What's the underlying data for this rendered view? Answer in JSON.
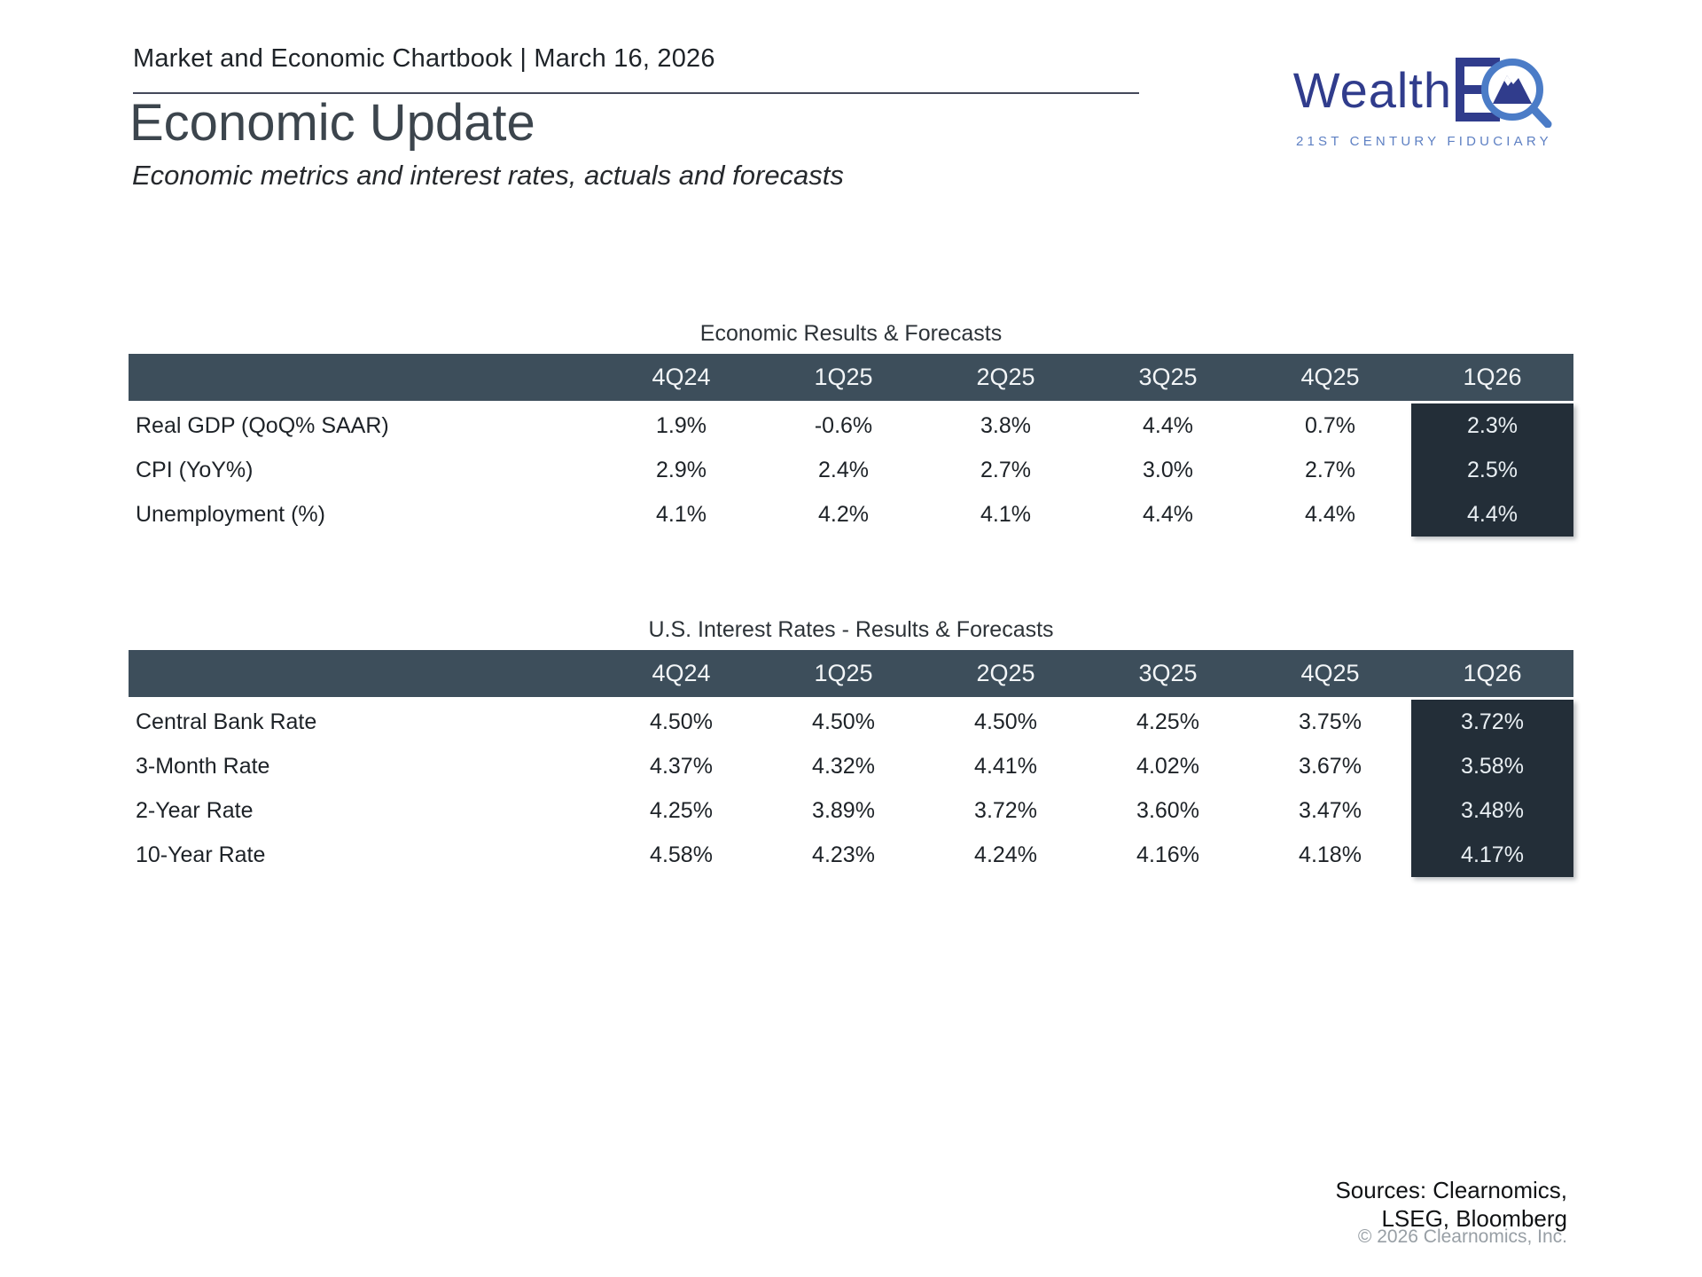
{
  "page": {
    "kicker": "Market and Economic Chartbook | March 16, 2026",
    "title": "Economic Update",
    "subtitle": "Economic metrics and interest rates, actuals and forecasts"
  },
  "logo": {
    "brand_main": "Wealth",
    "brand_suffix": "EQ",
    "tagline": "21ST CENTURY FIDUCIARY",
    "navy": "#303c8c",
    "blue": "#4b7cc7"
  },
  "colors": {
    "header_bar": "#3d4e5b",
    "forecast_column": "#232e38",
    "header_text": "#f2f5f7",
    "body_text": "#1d2227"
  },
  "tables": [
    {
      "title": "Economic Results & Forecasts",
      "columns": [
        "4Q24",
        "1Q25",
        "2Q25",
        "3Q25",
        "4Q25",
        "1Q26"
      ],
      "forecast_column_index": 5,
      "rows": [
        {
          "label": "Real GDP (QoQ% SAAR)",
          "values": [
            "1.9%",
            "-0.6%",
            "3.8%",
            "4.4%",
            "0.7%",
            "2.3%"
          ]
        },
        {
          "label": "CPI (YoY%)",
          "values": [
            "2.9%",
            "2.4%",
            "2.7%",
            "3.0%",
            "2.7%",
            "2.5%"
          ]
        },
        {
          "label": "Unemployment (%)",
          "values": [
            "4.1%",
            "4.2%",
            "4.1%",
            "4.4%",
            "4.4%",
            "4.4%"
          ]
        }
      ]
    },
    {
      "title": "U.S. Interest Rates - Results & Forecasts",
      "columns": [
        "4Q24",
        "1Q25",
        "2Q25",
        "3Q25",
        "4Q25",
        "1Q26"
      ],
      "forecast_column_index": 5,
      "rows": [
        {
          "label": "Central Bank Rate",
          "values": [
            "4.50%",
            "4.50%",
            "4.50%",
            "4.25%",
            "3.75%",
            "3.72%"
          ]
        },
        {
          "label": "3-Month Rate",
          "values": [
            "4.37%",
            "4.32%",
            "4.41%",
            "4.02%",
            "3.67%",
            "3.58%"
          ]
        },
        {
          "label": "2-Year Rate",
          "values": [
            "4.25%",
            "3.89%",
            "3.72%",
            "3.60%",
            "3.47%",
            "3.48%"
          ]
        },
        {
          "label": "10-Year Rate",
          "values": [
            "4.58%",
            "4.23%",
            "4.24%",
            "4.16%",
            "4.18%",
            "4.17%"
          ]
        }
      ]
    }
  ],
  "footer": {
    "sources": "Sources: Clearnomics,\nLSEG, Bloomberg",
    "copyright": "© 2026 Clearnomics, Inc."
  }
}
